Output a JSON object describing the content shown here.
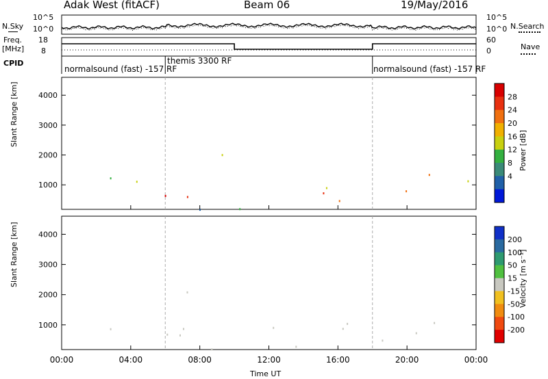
{
  "header": {
    "station": "Adak West (fitACF)",
    "beam": "Beam 06",
    "date": "19/May/2016"
  },
  "top_panels": {
    "nsky_label": "N.Sky",
    "nsky_ticks": [
      "10^5",
      "10^0"
    ],
    "nsearch_label": "N.Search",
    "nsearch_ticks": [
      "10^5",
      "10^0"
    ],
    "freq_label": "Freq.",
    "freq_unit": "[MHz]",
    "freq_ticks": [
      "18",
      "8"
    ],
    "nave_label": "Nave",
    "nave_ticks": [
      "60",
      "0"
    ],
    "cpid_label": "CPID",
    "cpid_segments": [
      {
        "label": "normalsound (fast) -157 RF",
        "start_hour": 0,
        "end_hour": 6
      },
      {
        "label": "themis 3300 RF",
        "start_hour": 6,
        "end_hour": 18
      },
      {
        "label": "normalsound (fast) -157 RF",
        "start_hour": 18,
        "end_hour": 24
      }
    ]
  },
  "power_scale": {
    "label": "Power [dB]",
    "ticks": [
      "28",
      "24",
      "20",
      "16",
      "12",
      "8",
      "4"
    ],
    "colors": [
      "#0018d8",
      "#2060a8",
      "#3a8a78",
      "#34b040",
      "#c8d010",
      "#f0b000",
      "#f07010",
      "#e83010",
      "#d80000"
    ]
  },
  "velocity_scale": {
    "label": "Velocity [m s⁻¹]",
    "ticks": [
      "200",
      "100",
      "50",
      "15",
      "-15",
      "-50",
      "-100",
      "-200"
    ],
    "colors": [
      "#1030c8",
      "#2a6aa0",
      "#2e9a70",
      "#50c040",
      "#c8c8c0",
      "#f0c020",
      "#f08c10",
      "#f04a10",
      "#e00000"
    ]
  },
  "chart_data": [
    {
      "type": "heatmap",
      "title": "Power",
      "ylabel": "Slant Range [km]",
      "xlabel": "Time UT",
      "yticks": [
        "4000",
        "3000",
        "2000",
        "1000"
      ],
      "ylim": [
        180,
        4600
      ],
      "xticks": [
        "00:00",
        "04:00",
        "08:00",
        "12:00",
        "16:00",
        "20:00",
        "00:00"
      ],
      "xlim_hours": [
        0,
        24
      ],
      "grid": false
    },
    {
      "type": "heatmap",
      "title": "Velocity",
      "ylabel": "Slant Range [km]",
      "xlabel": "Time UT",
      "yticks": [
        "4000",
        "3000",
        "2000",
        "1000"
      ],
      "ylim": [
        180,
        4600
      ],
      "xticks": [
        "00:00",
        "04:00",
        "08:00",
        "12:00",
        "16:00",
        "20:00",
        "00:00"
      ],
      "xlim_hours": [
        0,
        24
      ],
      "grid": false
    }
  ],
  "xaxis_label": "Time UT"
}
